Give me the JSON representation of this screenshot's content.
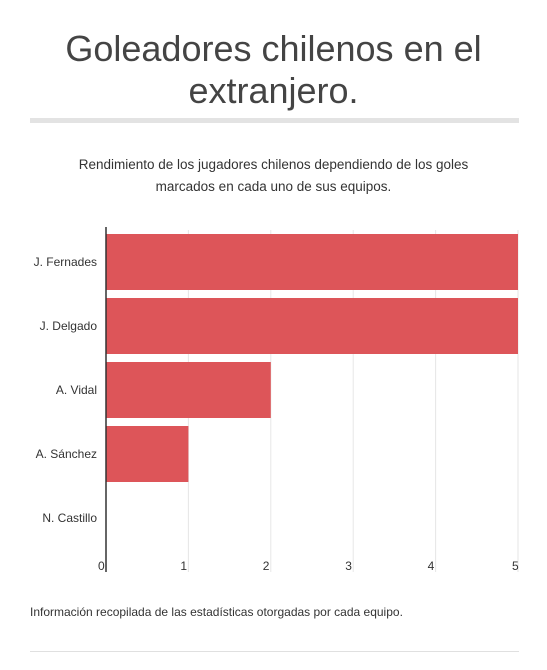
{
  "header": {
    "title_line1": "Goleadores chilenos en el",
    "title_line2": "extranjero.",
    "subtitle_line1": "Rendimiento de los jugadores chilenos dependiendo de los goles",
    "subtitle_line2": "marcados en cada uno de sus equipos."
  },
  "footer": {
    "note": "Información recopilada de las estadísticas otorgadas por cada equipo."
  },
  "chart_data": {
    "type": "bar",
    "orientation": "horizontal",
    "categories": [
      "J. Fernades",
      "J. Delgado",
      "A. Vidal",
      "A. Sánchez",
      "N. Castillo"
    ],
    "values": [
      5,
      5,
      2,
      1,
      0
    ],
    "xlim": [
      0,
      5
    ],
    "xticks": [
      "0",
      "1",
      "2",
      "3",
      "4",
      "5"
    ],
    "grid": true,
    "bar_color": "#dd5559",
    "grid_color": "#e6e6e6",
    "axis_color": "#333333"
  }
}
